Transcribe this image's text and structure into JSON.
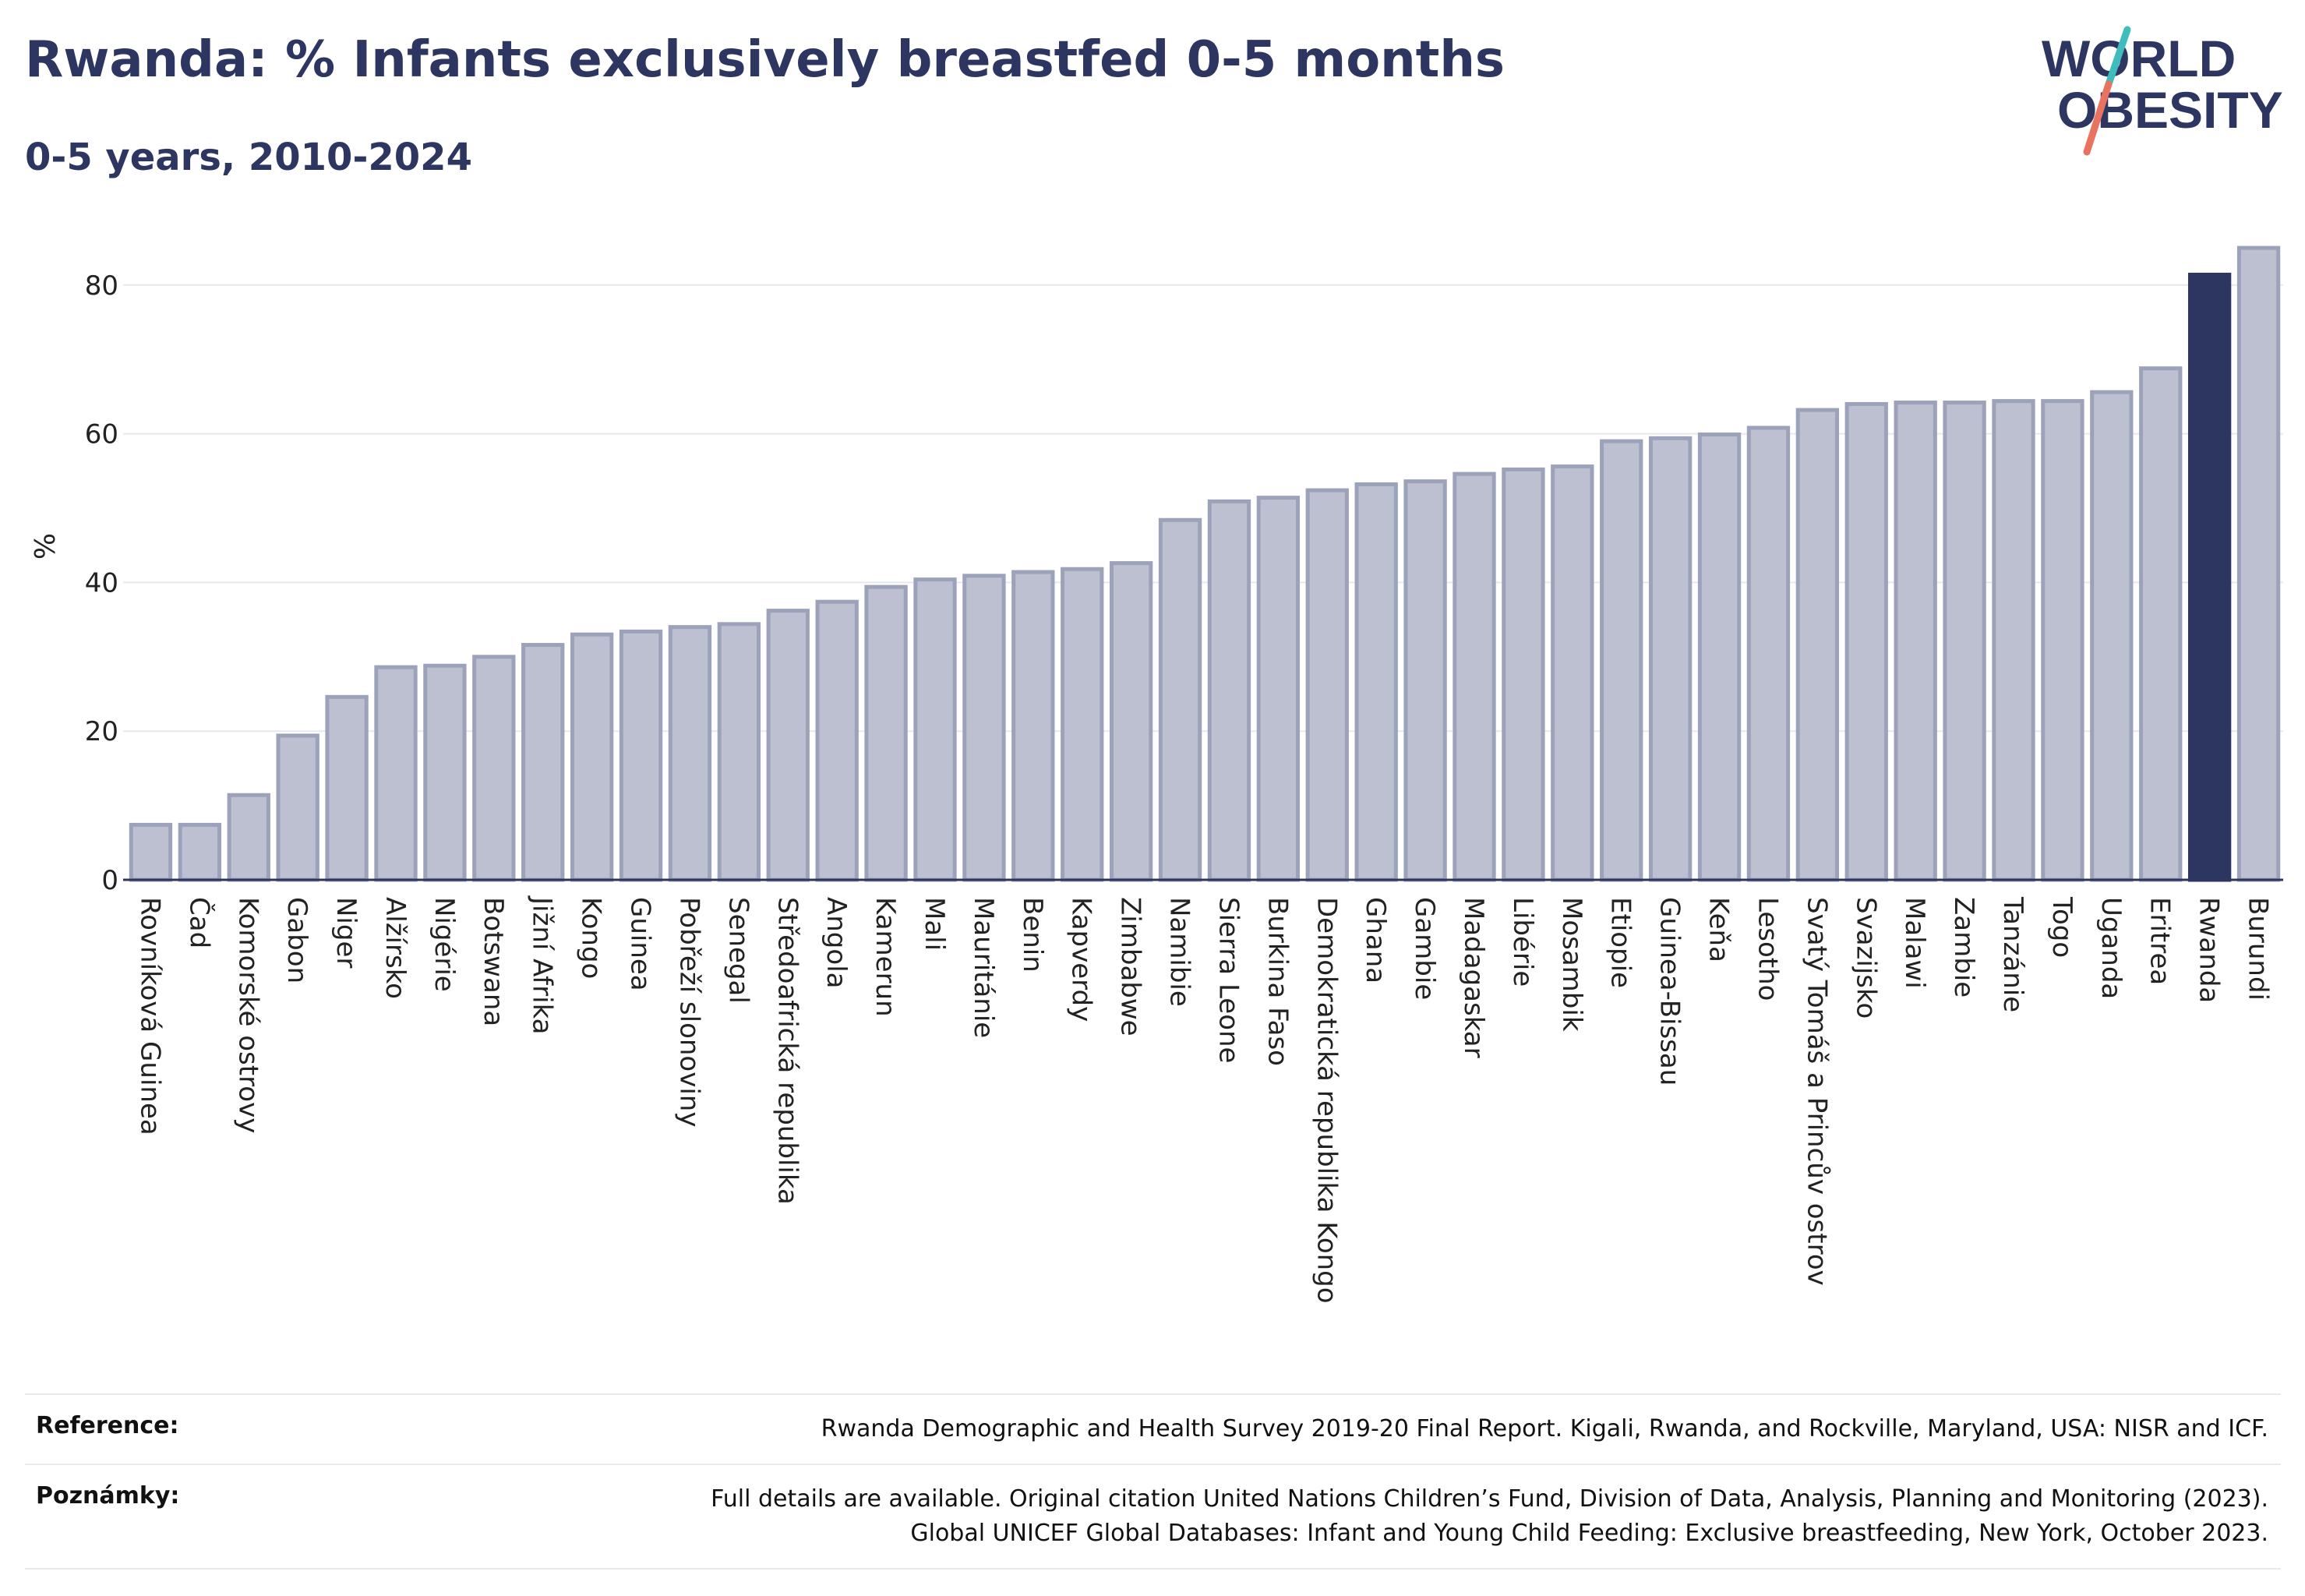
{
  "title": "Rwanda: % Infants exclusively breastfed 0-5 months",
  "subtitle": "0-5 years, 2010-2024",
  "logo": {
    "line1": "WORLD",
    "line2": "OBESITY"
  },
  "colors": {
    "bar": "#bcc0d0",
    "bar_stroke": "#9ca2ba",
    "highlight": "#2d3561",
    "grid": "#e8e8ee",
    "text": "#2d3561"
  },
  "chart_data": {
    "type": "bar",
    "ylabel": "%",
    "ylim": [
      0,
      88
    ],
    "yticks": [
      0,
      20,
      40,
      60,
      80
    ],
    "grid": true,
    "highlight": "Rwanda",
    "categories": [
      "Rovníková Guinea",
      "Čad",
      "Komorské ostrovy",
      "Gabon",
      "Niger",
      "Alžírsko",
      "Nigérie",
      "Botswana",
      "Jižní Afrika",
      "Kongo",
      "Guinea",
      "Pobřeží slonoviny",
      "Senegal",
      "Středoafrická republika",
      "Angola",
      "Kamerun",
      "Mali",
      "Mauritánie",
      "Benin",
      "Kapverdy",
      "Zimbabwe",
      "Namibie",
      "Sierra Leone",
      "Burkina Faso",
      "Demokratická republika Kongo",
      "Ghana",
      "Gambie",
      "Madagaskar",
      "Libérie",
      "Mosambik",
      "Etiopie",
      "Guinea-Bissau",
      "Keňa",
      "Lesotho",
      "Svatý Tomáš a Princův ostrov",
      "Svazijsko",
      "Malawi",
      "Zambie",
      "Tanzánie",
      "Togo",
      "Uganda",
      "Eritrea",
      "Rwanda",
      "Burundi"
    ],
    "values": [
      7.4,
      7.4,
      11.4,
      19.4,
      24.6,
      28.6,
      28.8,
      30.0,
      31.6,
      33.0,
      33.4,
      34.0,
      34.4,
      36.2,
      37.4,
      39.4,
      40.4,
      40.9,
      41.4,
      41.8,
      42.6,
      48.4,
      50.9,
      51.4,
      52.4,
      53.2,
      53.6,
      54.6,
      55.2,
      55.6,
      59.0,
      59.4,
      59.9,
      60.8,
      63.2,
      64.0,
      64.2,
      64.2,
      64.4,
      64.4,
      65.6,
      68.8,
      81.4,
      85.0
    ]
  },
  "footer": {
    "reference_label": "Reference:",
    "reference_text": "Rwanda Demographic and Health Survey 2019-20 Final Report. Kigali, Rwanda, and Rockville, Maryland, USA: NISR and ICF.",
    "notes_label": "Poznámky:",
    "notes_line1": "Full details are available. Original citation United Nations Children’s Fund, Division of Data, Analysis, Planning and Monitoring (2023).",
    "notes_line2": "Global UNICEF Global Databases: Infant and Young Child Feeding: Exclusive breastfeeding, New York, October 2023."
  }
}
